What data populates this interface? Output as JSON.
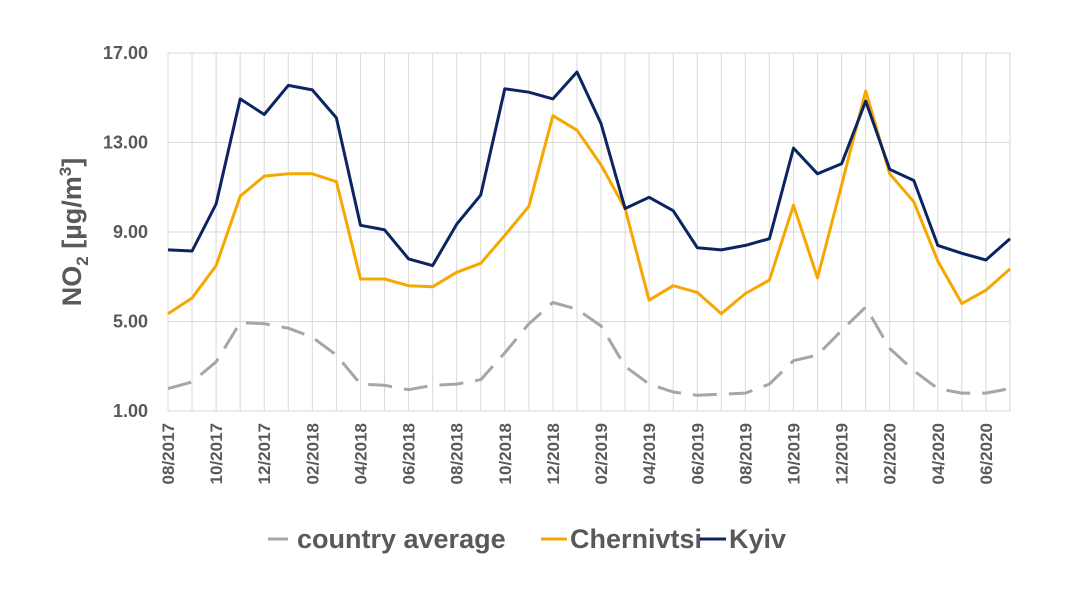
{
  "chart_data": {
    "type": "line",
    "ylabel": {
      "main": "NO",
      "sub": "2",
      "unit_open": " [µg/m",
      "sup": "3",
      "unit_close": "]"
    },
    "ylim": [
      1,
      17
    ],
    "yticks": [
      "1.00",
      "5.00",
      "9.00",
      "13.00",
      "17.00"
    ],
    "ytick_values": [
      1,
      5,
      9,
      13,
      17
    ],
    "grid": "vertical and horizontal",
    "legend_position": "bottom",
    "x": [
      "08/2017",
      "09/2017",
      "10/2017",
      "11/2017",
      "12/2017",
      "01/2018",
      "02/2018",
      "03/2018",
      "04/2018",
      "05/2018",
      "06/2018",
      "07/2018",
      "08/2018",
      "09/2018",
      "10/2018",
      "11/2018",
      "12/2018",
      "01/2019",
      "02/2019",
      "03/2019",
      "04/2019",
      "05/2019",
      "06/2019",
      "07/2019",
      "08/2019",
      "09/2019",
      "10/2019",
      "11/2019",
      "12/2019",
      "01/2020",
      "02/2020",
      "03/2020",
      "04/2020",
      "05/2020",
      "06/2020",
      "07/2020"
    ],
    "xtick_labels": [
      "08/2017",
      "10/2017",
      "12/2017",
      "02/2018",
      "04/2018",
      "06/2018",
      "08/2018",
      "10/2018",
      "12/2018",
      "02/2019",
      "04/2019",
      "06/2019",
      "08/2019",
      "10/2019",
      "12/2019",
      "02/2020",
      "04/2020",
      "06/2020"
    ],
    "series": [
      {
        "name": "country average",
        "color": "#a6a6a6",
        "dash": true,
        "values": [
          2.0,
          2.3,
          3.2,
          4.95,
          4.9,
          4.7,
          4.3,
          3.5,
          2.2,
          2.15,
          1.95,
          2.15,
          2.2,
          2.4,
          3.6,
          4.9,
          5.85,
          5.55,
          4.8,
          3.0,
          2.2,
          1.85,
          1.7,
          1.75,
          1.8,
          2.2,
          3.25,
          3.5,
          4.6,
          5.65,
          3.8,
          2.8,
          2.0,
          1.8,
          1.8,
          2.0
        ]
      },
      {
        "name": "Chernivtsi",
        "color": "#f6a800",
        "dash": false,
        "values": [
          5.35,
          6.05,
          7.5,
          10.6,
          11.5,
          11.6,
          11.6,
          11.25,
          6.9,
          6.9,
          6.6,
          6.55,
          7.2,
          7.6,
          8.85,
          10.15,
          14.2,
          13.55,
          12.0,
          10.05,
          5.95,
          6.6,
          6.3,
          5.35,
          6.25,
          6.85,
          10.2,
          6.95,
          11.1,
          15.3,
          11.6,
          10.35,
          7.7,
          5.8,
          6.4,
          7.35
        ]
      },
      {
        "name": "Kyiv",
        "color": "#0c2461",
        "dash": false,
        "values": [
          8.2,
          8.15,
          10.25,
          14.95,
          14.25,
          15.55,
          15.35,
          14.1,
          9.3,
          9.1,
          7.8,
          7.5,
          9.35,
          10.65,
          15.4,
          15.25,
          14.95,
          16.15,
          13.85,
          10.05,
          10.55,
          9.95,
          8.3,
          8.2,
          8.4,
          8.7,
          12.75,
          11.6,
          12.05,
          14.85,
          11.8,
          11.3,
          8.4,
          8.05,
          7.75,
          8.7
        ]
      }
    ]
  }
}
